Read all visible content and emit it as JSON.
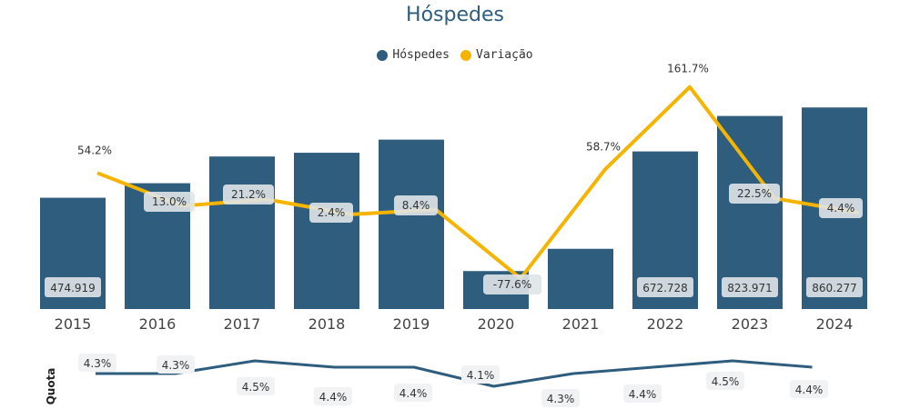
{
  "chart_data": [
    {
      "type": "bar+line",
      "title": "Hóspedes",
      "legend": [
        {
          "name": "Hóspedes",
          "color": "#2f5d7e"
        },
        {
          "name": "Variação",
          "color": "#f5b400"
        }
      ],
      "legend_position": "top-center",
      "categories": [
        "2015",
        "2016",
        "2017",
        "2018",
        "2019",
        "2020",
        "2021",
        "2022",
        "2023",
        "2024"
      ],
      "series": [
        {
          "name": "Hóspedes",
          "type": "bar",
          "values": [
            474919,
            537000,
            651000,
            667000,
            723000,
            162000,
            257000,
            672728,
            823971,
            860277
          ],
          "labels": [
            "474.919",
            "",
            "",
            "",
            "",
            "",
            "",
            "672.728",
            "823.971",
            "860.277"
          ]
        },
        {
          "name": "Variação",
          "type": "line",
          "values": [
            54.2,
            13.0,
            21.2,
            2.4,
            8.4,
            -77.6,
            58.7,
            161.7,
            22.5,
            4.4
          ],
          "labels": [
            "54.2%",
            "13.0%",
            "21.2%",
            "2.4%",
            "8.4%",
            "-77.6%",
            "58.7%",
            "161.7%",
            "22.5%",
            "4.4%"
          ]
        }
      ],
      "grid": false
    },
    {
      "type": "line",
      "ylabel": "Quota",
      "categories": [
        "2015",
        "2016",
        "2017",
        "2018",
        "2019",
        "2020",
        "2021",
        "2022",
        "2023",
        "2024"
      ],
      "series": [
        {
          "values": [
            4.3,
            4.3,
            4.5,
            4.4,
            4.4,
            4.1,
            4.3,
            4.4,
            4.5,
            4.4
          ],
          "labels": [
            "4.3%",
            "4.3%",
            "4.5%",
            "4.4%",
            "4.4%",
            "4.1%",
            "4.3%",
            "4.4%",
            "4.5%",
            "4.4%"
          ],
          "color": "#2f5d7e"
        }
      ]
    }
  ],
  "colors": {
    "bar": "#2f5d7e",
    "line": "#f5b400",
    "quota": "#2f5d7e",
    "label_bg": "#dfe4e8"
  }
}
